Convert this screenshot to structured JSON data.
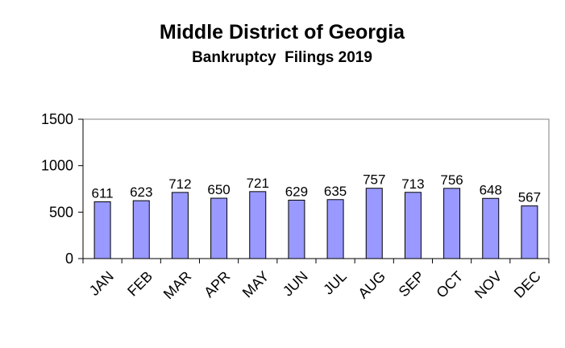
{
  "chart_data": {
    "type": "bar",
    "title": "Middle District of Georgia",
    "subtitle": "Bankruptcy  Filings 2019",
    "categories": [
      "JAN",
      "FEB",
      "MAR",
      "APR",
      "MAY",
      "JUN",
      "JUL",
      "AUG",
      "SEP",
      "OCT",
      "NOV",
      "DEC"
    ],
    "values": [
      611,
      623,
      712,
      650,
      721,
      629,
      635,
      757,
      713,
      756,
      648,
      567
    ],
    "data_labels": [
      "611",
      "623",
      "712",
      "650",
      "721",
      "629",
      "635",
      "757",
      "713",
      "756",
      "648",
      "567"
    ],
    "ylim": [
      0,
      1500
    ],
    "y_ticks": [
      "0",
      "500",
      "1000",
      "1500"
    ],
    "grid": false,
    "legend": "none",
    "colors": {
      "bar_fill": "#9999ff",
      "bar_stroke": "#000000"
    }
  }
}
